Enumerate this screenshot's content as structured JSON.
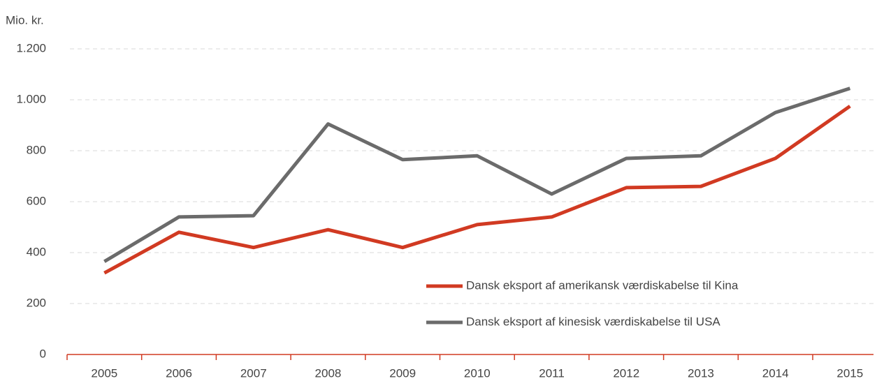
{
  "chart_data": {
    "type": "line",
    "y_axis_label": "Mio. kr.",
    "categories": [
      "2005",
      "2006",
      "2007",
      "2008",
      "2009",
      "2010",
      "2011",
      "2012",
      "2013",
      "2014",
      "2015"
    ],
    "series": [
      {
        "name": "Dansk eksport af amerikansk værdiskabelse til Kina",
        "color": "#d13a22",
        "values": [
          320,
          480,
          420,
          490,
          420,
          510,
          540,
          655,
          660,
          770,
          975
        ]
      },
      {
        "name": "Dansk eksport af kinesisk værdiskabelse til USA",
        "color": "#6b6b6b",
        "values": [
          365,
          540,
          545,
          905,
          765,
          780,
          630,
          770,
          780,
          950,
          1045
        ]
      }
    ],
    "ylim": [
      0,
      1200
    ],
    "yticks": [
      0,
      200,
      400,
      600,
      800,
      {
        "value": 1000,
        "label": "1.000"
      },
      {
        "value": 1200,
        "label": "1.200"
      }
    ],
    "grid": true,
    "legend": "lower right"
  }
}
